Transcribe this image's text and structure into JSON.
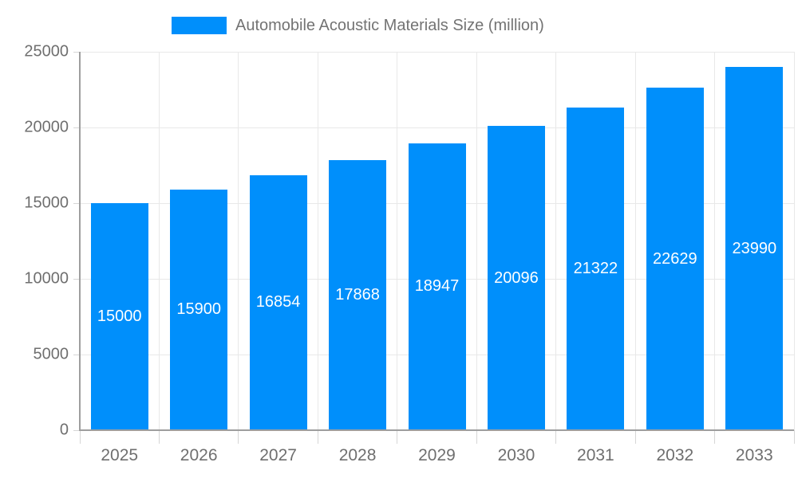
{
  "legend": {
    "label": "Automobile Acoustic Materials Size (million)"
  },
  "colors": {
    "bar": "#008FFB",
    "grid_line": "#e8e8e8",
    "axis_line": "#9e9e9e",
    "tick": "#d6d6d6",
    "axis_text": "#6f6f6f",
    "title_text": "#737373",
    "bar_label_text": "#ffffff",
    "background": "#ffffff"
  },
  "chart_data": {
    "type": "bar",
    "title": "Automobile Acoustic Materials Size (million)",
    "categories": [
      "2025",
      "2026",
      "2027",
      "2028",
      "2029",
      "2030",
      "2031",
      "2032",
      "2033"
    ],
    "values": [
      15000,
      15900,
      16854,
      17868,
      18947,
      20096,
      21322,
      22629,
      23990
    ],
    "series": [
      {
        "name": "Automobile Acoustic Materials Size (million)",
        "values": [
          15000,
          15900,
          16854,
          17868,
          18947,
          20096,
          21322,
          22629,
          23990
        ]
      }
    ],
    "xlabel": "",
    "ylabel": "",
    "ylim": [
      0,
      25000
    ],
    "yticks": [
      0,
      5000,
      10000,
      15000,
      20000,
      25000
    ],
    "grid": true,
    "legend_position": "top",
    "data_labels": "inside-center"
  }
}
